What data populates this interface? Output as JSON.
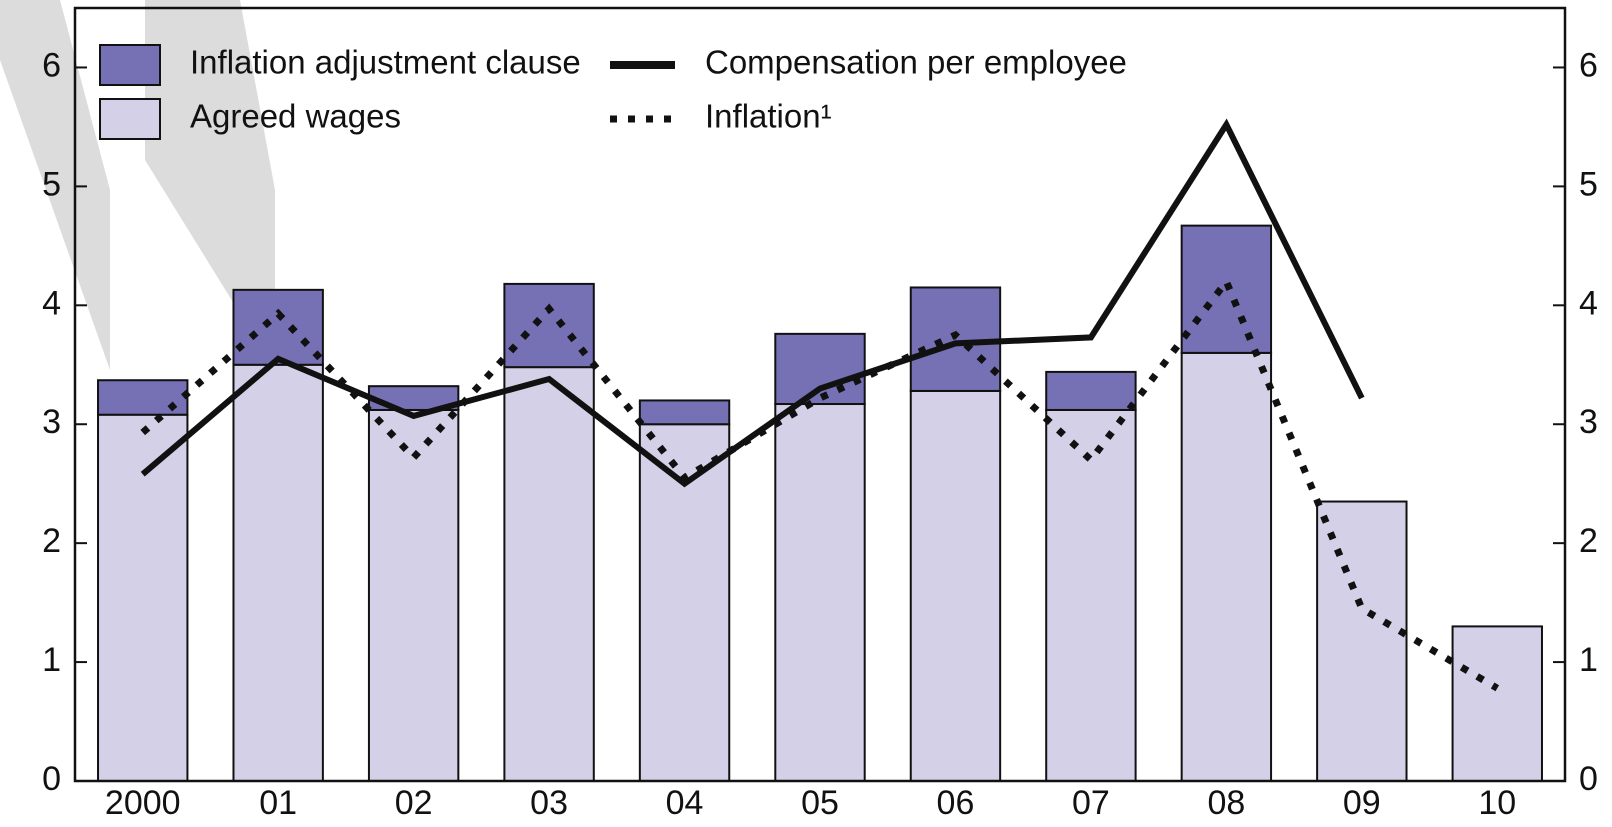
{
  "chart_data": {
    "type": "bar",
    "categories": [
      "2000",
      "01",
      "02",
      "03",
      "04",
      "05",
      "06",
      "07",
      "08",
      "09",
      "10"
    ],
    "series": [
      {
        "name": "Agreed wages",
        "type": "bar",
        "color": "#d4d0e8",
        "values": [
          3.08,
          3.5,
          3.12,
          3.48,
          3.0,
          3.17,
          3.28,
          3.12,
          3.6,
          2.35,
          1.3
        ]
      },
      {
        "name": "Inflation adjustment clause",
        "type": "bar",
        "color": "#7670b4",
        "values": [
          0.29,
          0.63,
          0.2,
          0.7,
          0.2,
          0.59,
          0.87,
          0.32,
          1.07,
          null,
          null
        ]
      },
      {
        "name": "Compensation per employee",
        "type": "line",
        "style": "solid",
        "color": "#111111",
        "values": [
          2.58,
          3.55,
          3.07,
          3.38,
          2.5,
          3.3,
          3.68,
          3.73,
          5.52,
          3.22,
          null
        ]
      },
      {
        "name": "Inflation¹",
        "type": "line",
        "style": "dotted",
        "color": "#111111",
        "values": [
          2.93,
          3.93,
          2.72,
          3.97,
          2.55,
          3.22,
          3.75,
          2.7,
          4.2,
          1.45,
          0.78
        ]
      }
    ],
    "stacked": true,
    "ylim": [
      0,
      6.5
    ],
    "yticks": [
      0,
      1,
      2,
      3,
      4,
      5,
      6
    ],
    "y2lim": [
      0,
      6.5
    ],
    "y2ticks": [
      0,
      1,
      2,
      3,
      4,
      5,
      6
    ]
  }
}
